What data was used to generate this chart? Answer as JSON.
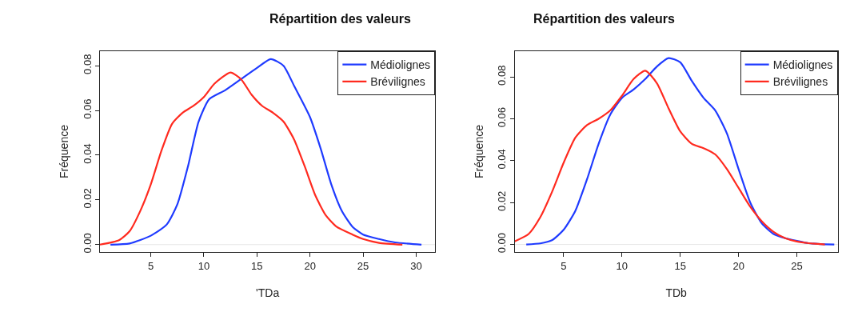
{
  "chart_data": [
    {
      "type": "line",
      "title": "Répartition des valeurs",
      "xlabel": "'TDa",
      "ylabel": "Fréquence",
      "xlim": [
        0.2,
        31.8
      ],
      "xticks": [
        5,
        10,
        15,
        20,
        25,
        30
      ],
      "ylim": [
        -0.0033,
        0.0865
      ],
      "yticks": [
        {
          "value": 0,
          "label": "0.00"
        },
        0.02,
        0.04,
        0.06,
        0.08
      ],
      "grid": false,
      "legend": "top right",
      "marker": "none",
      "line_style": "solid",
      "ref_lines": [
        {
          "axis": "y",
          "value": 0,
          "color": "#e6e6e6"
        }
      ],
      "series": [
        {
          "name": "Médiolignes",
          "color": "#1f3bff",
          "x": [
            1.2,
            3,
            5,
            6.5,
            7.5,
            8.5,
            9.5,
            10.5,
            12,
            13.5,
            15,
            16.3,
            17.5,
            18.5,
            20,
            21,
            22,
            23,
            24,
            25,
            26.5,
            28,
            30.5
          ],
          "values": [
            0,
            0.0005,
            0.004,
            0.009,
            0.018,
            0.035,
            0.055,
            0.065,
            0.069,
            0.074,
            0.079,
            0.083,
            0.08,
            0.071,
            0.057,
            0.043,
            0.027,
            0.015,
            0.008,
            0.0045,
            0.0025,
            0.001,
            0
          ]
        },
        {
          "name": "Brévilignes",
          "color": "#ff2a1f",
          "x": [
            0.2,
            2,
            3,
            4,
            5,
            6,
            7,
            8,
            9,
            10,
            11,
            12.5,
            13.5,
            14.5,
            15.5,
            16.5,
            17.5,
            18.5,
            19.5,
            20.5,
            21.5,
            22.5,
            24,
            25,
            26.5,
            28.7
          ],
          "values": [
            0,
            0.002,
            0.006,
            0.015,
            0.027,
            0.042,
            0.054,
            0.059,
            0.062,
            0.066,
            0.072,
            0.077,
            0.074,
            0.067,
            0.062,
            0.059,
            0.055,
            0.047,
            0.035,
            0.022,
            0.013,
            0.008,
            0.0045,
            0.0025,
            0.0008,
            0
          ]
        }
      ]
    },
    {
      "type": "line",
      "title": "Répartition des valeurs",
      "xlabel": "TDb",
      "ylabel": "Fréquence",
      "xlim": [
        0.8,
        28.5
      ],
      "xticks": [
        5,
        10,
        15,
        20,
        25
      ],
      "ylim": [
        -0.0036,
        0.0923
      ],
      "yticks": [
        {
          "value": 0,
          "label": "0.00"
        },
        0.02,
        0.04,
        0.06,
        0.08
      ],
      "grid": false,
      "legend": "top right",
      "marker": "none",
      "line_style": "solid",
      "ref_lines": [
        {
          "axis": "y",
          "value": 0,
          "color": "#e6e6e6"
        }
      ],
      "series": [
        {
          "name": "Médiolignes",
          "color": "#1f3bff",
          "x": [
            1.8,
            3,
            4,
            5,
            6,
            7,
            8,
            9,
            10,
            11,
            12,
            13,
            14,
            15,
            16,
            17,
            18,
            19,
            20,
            21,
            22,
            23,
            24,
            25,
            26,
            27,
            28.2
          ],
          "values": [
            0,
            0.0005,
            0.002,
            0.007,
            0.016,
            0.031,
            0.048,
            0.062,
            0.07,
            0.074,
            0.079,
            0.085,
            0.089,
            0.087,
            0.078,
            0.07,
            0.064,
            0.053,
            0.036,
            0.02,
            0.01,
            0.005,
            0.003,
            0.0017,
            0.0006,
            0.0002,
            0
          ]
        },
        {
          "name": "Brévilignes",
          "color": "#ff2a1f",
          "x": [
            0.8,
            2,
            3,
            4,
            5,
            6,
            7,
            8,
            9,
            10,
            11,
            12,
            13,
            14,
            15,
            16,
            17,
            18,
            19,
            20,
            21,
            22,
            23,
            24,
            25,
            26,
            27.4
          ],
          "values": [
            0.0015,
            0.005,
            0.013,
            0.025,
            0.039,
            0.051,
            0.057,
            0.06,
            0.064,
            0.071,
            0.079,
            0.083,
            0.077,
            0.065,
            0.054,
            0.048,
            0.046,
            0.043,
            0.036,
            0.027,
            0.018,
            0.011,
            0.006,
            0.003,
            0.0014,
            0.0006,
            0
          ]
        }
      ]
    }
  ]
}
